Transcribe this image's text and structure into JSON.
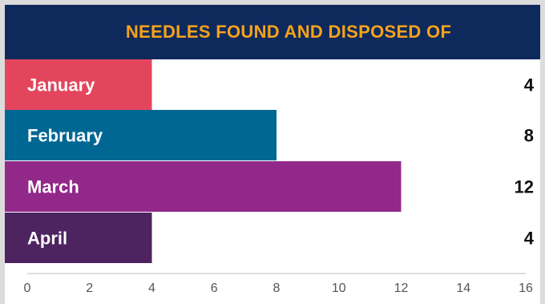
{
  "chart_data": {
    "type": "bar",
    "orientation": "horizontal",
    "title": "NEEDLES FOUND AND DISPOSED OF",
    "categories": [
      "January",
      "February",
      "March",
      "April"
    ],
    "values": [
      4,
      8,
      12,
      4
    ],
    "value_labels": [
      "4",
      "8",
      "12",
      "4"
    ],
    "colors": [
      "#e3465c",
      "#006793",
      "#922889",
      "#4d2360"
    ],
    "xlim": [
      0,
      16
    ],
    "x_ticks": [
      0,
      2,
      4,
      6,
      8,
      10,
      12,
      14,
      16
    ],
    "x_tick_labels": [
      "0",
      "2",
      "4",
      "6",
      "8",
      "10",
      "12",
      "14",
      "16"
    ],
    "grid": false,
    "legend": "none"
  },
  "colors": {
    "title_background": "#0e2a5c",
    "title_text": "#f7a21b",
    "page_background": "#dcdcdc"
  }
}
